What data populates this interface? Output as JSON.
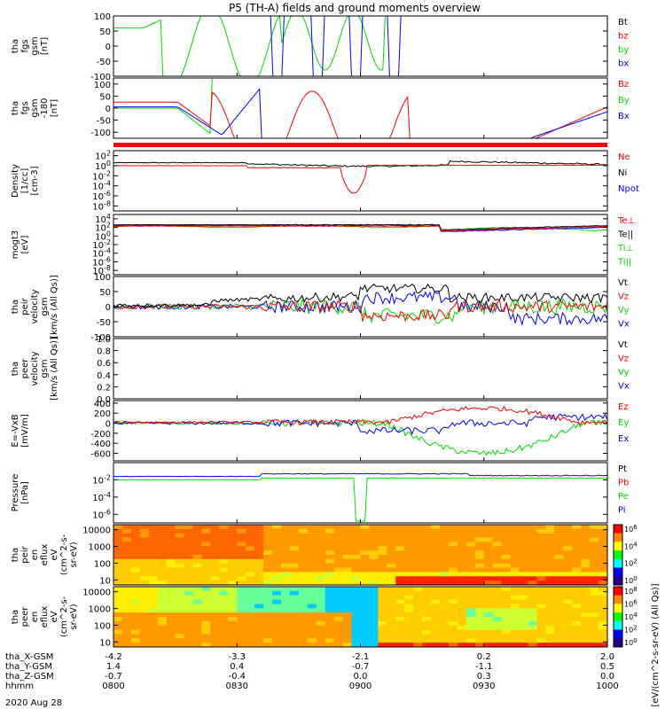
{
  "chart_data": {
    "type": "line",
    "title": "P5 (TH-A) fields and ground moments overview",
    "date_label": "2020 Aug 28",
    "x_ticks": [
      {
        "hhmm": "0800",
        "x_gsm": "-4.2",
        "y_gsm": "1.4",
        "z_gsm": "-0.7"
      },
      {
        "hhmm": "0830",
        "x_gsm": "-3.3",
        "y_gsm": "0.4",
        "z_gsm": "-0.4"
      },
      {
        "hhmm": "0900",
        "x_gsm": "-2.1",
        "y_gsm": "-0.7",
        "z_gsm": "0.0"
      },
      {
        "hhmm": "0930",
        "x_gsm": "0.2",
        "y_gsm": "-1.1",
        "z_gsm": "0.3"
      },
      {
        "hhmm": "1000",
        "x_gsm": "2.0",
        "y_gsm": "0.5",
        "z_gsm": "0.0"
      }
    ],
    "x_rows": [
      "tha_X-GSM",
      "tha_Y-GSM",
      "tha_Z-GSM",
      "hhmm"
    ],
    "colors": {
      "black": "#000000",
      "red": "#ff0000",
      "green": "#00dd00",
      "blue": "#0000ff"
    },
    "panels": [
      {
        "id": "fgs",
        "ylabel": [
          "tha",
          "fgs",
          "gsm",
          "[nT]"
        ],
        "yscale": "linear",
        "ylim": [
          -100,
          100
        ],
        "ticks": [
          "100",
          "50",
          "0",
          "-50",
          "-100"
        ],
        "legend": [
          {
            "label": "Bt",
            "color": "#000000"
          },
          {
            "label": "bz",
            "color": "#ff0000"
          },
          {
            "label": "by",
            "color": "#00dd00"
          },
          {
            "label": "bx",
            "color": "#0000ff"
          }
        ]
      },
      {
        "id": "fgs_dsl",
        "ylabel": [
          "tha",
          "fgs",
          "gsm",
          "-180",
          "[nT]"
        ],
        "yscale": "linear",
        "ylim": [
          -125,
          125
        ],
        "ticks": [
          "100",
          "50",
          "0",
          "-50",
          "-100"
        ],
        "legend": [
          {
            "label": "Bz",
            "color": "#ff0000"
          },
          {
            "label": "By",
            "color": "#00dd00"
          },
          {
            "label": "Bx",
            "color": "#0000ff"
          }
        ]
      },
      {
        "id": "density",
        "ylabel": [
          "Density",
          "[1/cc]",
          "[cm-3]"
        ],
        "yscale": "log",
        "ylim": [
          -9,
          3
        ],
        "ticks": [
          "10^2",
          "10^0",
          "10^-2",
          "10^-4",
          "10^-6",
          "10^-8"
        ],
        "legend": [
          {
            "label": "Ne",
            "color": "#ff0000"
          },
          {
            "label": "Ni",
            "color": "#000000"
          },
          {
            "label": "Npot",
            "color": "#0000ff"
          }
        ]
      },
      {
        "id": "temp",
        "ylabel": [
          "mogt3",
          "[eV]"
        ],
        "yscale": "log",
        "ylim": [
          -9,
          5
        ],
        "ticks": [
          "10^4",
          "10^2",
          "10^0",
          "10^-2",
          "10^-4",
          "10^-6",
          "10^-8"
        ],
        "legend": [
          {
            "label": "Te⊥",
            "color": "#ff0000"
          },
          {
            "label": "Te||",
            "color": "#000000"
          },
          {
            "label": "Ti⊥",
            "color": "#00dd00"
          },
          {
            "label": "Ti||",
            "color": "#00dd00"
          }
        ]
      },
      {
        "id": "peir_vel",
        "ylabel": [
          "tha",
          "peir",
          "velocity",
          "gsm",
          "[km/s (All Qs)]"
        ],
        "yscale": "linear",
        "ylim": [
          -100,
          100
        ],
        "ticks": [
          "100",
          "50",
          "0",
          "-50",
          "-100"
        ],
        "legend": [
          {
            "label": "Vt",
            "color": "#000000"
          },
          {
            "label": "Vz",
            "color": "#ff0000"
          },
          {
            "label": "Vy",
            "color": "#00dd00"
          },
          {
            "label": "Vx",
            "color": "#0000ff"
          }
        ]
      },
      {
        "id": "peer_vel",
        "ylabel": [
          "tha",
          "peer",
          "velocity",
          "gsm",
          "[km/s (All Qs)]"
        ],
        "yscale": "linear",
        "ylim": [
          0,
          1.0
        ],
        "ticks": [
          "1.0",
          "0.8",
          "0.6",
          "0.4",
          "0.2",
          "0.0"
        ],
        "legend": [
          {
            "label": "Vt",
            "color": "#000000"
          },
          {
            "label": "Vz",
            "color": "#ff0000"
          },
          {
            "label": "Vy",
            "color": "#00dd00"
          },
          {
            "label": "Vx",
            "color": "#0000ff"
          }
        ]
      },
      {
        "id": "efield",
        "ylabel": [
          "E=-VxB",
          "[mV/m]"
        ],
        "yscale": "linear",
        "ylim": [
          -750,
          450
        ],
        "ticks": [
          "400",
          "200",
          "0",
          "-200",
          "-400",
          "-600"
        ],
        "legend": [
          {
            "label": "Ez",
            "color": "#ff0000"
          },
          {
            "label": "Ey",
            "color": "#00dd00"
          },
          {
            "label": "Ex",
            "color": "#0000ff"
          }
        ]
      },
      {
        "id": "pressure",
        "ylabel": [
          "Pressure",
          "[nPa]"
        ],
        "yscale": "log",
        "ylim": [
          -7,
          0
        ],
        "ticks": [
          "10^-2",
          "10^-4",
          "10^-6"
        ],
        "legend": [
          {
            "label": "Pt",
            "color": "#000000"
          },
          {
            "label": "Pb",
            "color": "#ff0000"
          },
          {
            "label": "Pe",
            "color": "#00dd00"
          },
          {
            "label": "Pi",
            "color": "#0000ff"
          }
        ]
      },
      {
        "id": "peir_en",
        "ylabel": [
          "tha",
          "peir",
          "en",
          "eflux",
          "eV",
          "(cm^2-s-",
          "sr-eV)"
        ],
        "yscale": "log",
        "ylim": [
          0.7,
          4.3
        ],
        "ticks": [
          "10000",
          "1000",
          "100",
          "10"
        ],
        "colorbar_label": "[eV/(cm^2-s-sr-eV) (All Qs)]",
        "colorbar_ticks": [
          "10^6",
          "10^4",
          "10^2",
          "10^0"
        ]
      },
      {
        "id": "peer_en",
        "ylabel": [
          "tha",
          "peer",
          "en",
          "eflux",
          "eV",
          "(cm^2-s-",
          "sr-eV)"
        ],
        "yscale": "log",
        "ylim": [
          0.7,
          4.3
        ],
        "ticks": [
          "10000",
          "1000",
          "100",
          "10"
        ],
        "colorbar_label": "[eV/(cm^2-s-sr-eV) (All Qs)]",
        "colorbar_ticks": [
          "10^8",
          "10^6",
          "10^4",
          "10^2",
          "10^0"
        ]
      }
    ]
  }
}
